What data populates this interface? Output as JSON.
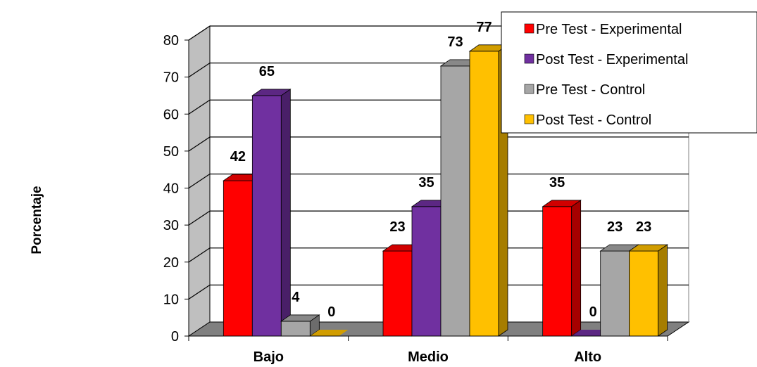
{
  "chart_data": {
    "type": "bar",
    "title": "",
    "xlabel": "",
    "ylabel": "Porcentaje",
    "ylim": [
      0,
      80
    ],
    "yticks": [
      0,
      10,
      20,
      30,
      40,
      50,
      60,
      70,
      80
    ],
    "grid": true,
    "three_d": true,
    "legend_position": "top-right",
    "categories": [
      "Bajo",
      "Medio",
      "Alto"
    ],
    "series": [
      {
        "name": "Pre Test - Experimental",
        "color": "#FF0000",
        "values": [
          42,
          23,
          35
        ]
      },
      {
        "name": "Post Test - Experimental",
        "color": "#7030A0",
        "values": [
          65,
          35,
          0
        ]
      },
      {
        "name": "Pre Test - Control",
        "color": "#A6A6A6",
        "values": [
          4,
          73,
          23
        ]
      },
      {
        "name": "Post Test - Control",
        "color": "#FFC000",
        "values": [
          0,
          77,
          23
        ]
      }
    ]
  }
}
